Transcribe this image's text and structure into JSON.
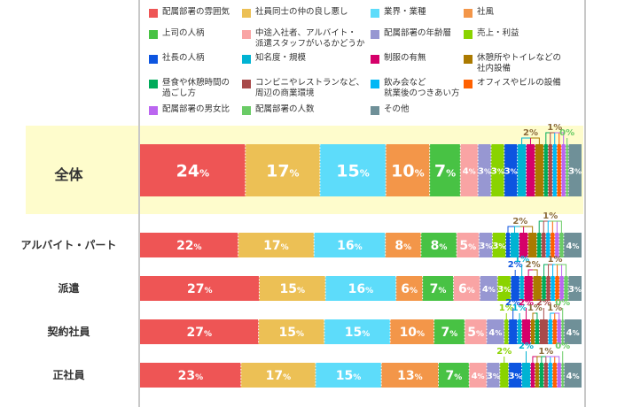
{
  "chart_data": {
    "type": "bar",
    "orientation": "horizontal",
    "stacked": true,
    "unit": "%",
    "legend_placement": "top",
    "series": [
      {
        "name": "配属部署の雰囲気",
        "color": "#ee5555"
      },
      {
        "name": "社員同士の仲の良し悪し",
        "color": "#ecc055"
      },
      {
        "name": "業界・業種",
        "color": "#5ddcfa"
      },
      {
        "name": "社風",
        "color": "#f39649"
      },
      {
        "name": "上司の人柄",
        "color": "#48c244"
      },
      {
        "name": "中途入社者、アルバイト・\n派遣スタッフがいるかどうか",
        "color": "#f9a4a4"
      },
      {
        "name": "配属部署の年齢層",
        "color": "#9797d2"
      },
      {
        "name": "売上・利益",
        "color": "#8ad300"
      },
      {
        "name": "社長の人柄",
        "color": "#0d55e0"
      },
      {
        "name": "知名度・規模",
        "color": "#00b3d3"
      },
      {
        "name": "制服の有無",
        "color": "#d5006a"
      },
      {
        "name": "休憩所やトイレなどの\n社内設備",
        "color": "#ab7a00"
      },
      {
        "name": "昼食や休憩時間の\n過ごし方",
        "color": "#00ab5a"
      },
      {
        "name": "コンビニやレストランなど、\n周辺の商業環境",
        "color": "#a84a4a"
      },
      {
        "name": "飲み会など\n就業後のつきあい方",
        "color": "#00b7f5"
      },
      {
        "name": "オフィスやビルの設備",
        "color": "#ff6000"
      },
      {
        "name": "配属部署の男女比",
        "color": "#bb66f0"
      },
      {
        "name": "配属部署の人数",
        "color": "#6acb66"
      },
      {
        "name": "その他",
        "color": "#6f9098"
      }
    ],
    "categories": [
      "全体",
      "アルバイト・パート",
      "派遣",
      "契約社員",
      "正社員"
    ],
    "rows": [
      {
        "category": "全体",
        "values": [
          24,
          17,
          15,
          10,
          7,
          4,
          3,
          3,
          3,
          2,
          2,
          2,
          1,
          1,
          1,
          1,
          1,
          0,
          3
        ],
        "callouts": [
          {
            "label": "2%",
            "segments": [
              9,
              10,
              11
            ]
          },
          {
            "label": "1%",
            "segments": [
              12,
              13,
              14,
              15,
              16
            ]
          },
          {
            "label": "0%",
            "segments": [
              17
            ]
          }
        ]
      },
      {
        "category": "アルバイト・パート",
        "values": [
          22,
          17,
          16,
          8,
          8,
          5,
          3,
          3,
          1,
          2,
          2,
          2,
          1,
          1,
          1,
          1,
          1,
          1,
          4
        ],
        "callouts": [
          {
            "label": "2%",
            "segments": [
              8,
              9,
              10,
              11
            ]
          },
          {
            "label": "1%",
            "segments": [
              12,
              13,
              14,
              15,
              16,
              17
            ]
          }
        ]
      },
      {
        "category": "派遣",
        "values": [
          27,
          15,
          16,
          6,
          7,
          6,
          4,
          3,
          2,
          1,
          2,
          2,
          1,
          1,
          1,
          1,
          1,
          1,
          3
        ],
        "callouts": [
          {
            "label": "2%",
            "segments": [
              8
            ]
          },
          {
            "label": "1%",
            "segments": [
              9
            ]
          },
          {
            "label": "2%",
            "segments": [
              10,
              11
            ]
          },
          {
            "label": "1%",
            "segments": [
              12,
              13,
              14,
              15,
              16,
              17
            ]
          }
        ]
      },
      {
        "category": "契約社員",
        "values": [
          27,
          15,
          15,
          10,
          7,
          5,
          4,
          1,
          2,
          1,
          2,
          1,
          1,
          2,
          1,
          1,
          1,
          0,
          4
        ],
        "callouts": [
          {
            "label": "1%",
            "segments": [
              7
            ]
          },
          {
            "label": "2%",
            "segments": [
              8
            ]
          },
          {
            "label": "1%",
            "segments": [
              9
            ]
          },
          {
            "label": "2%",
            "segments": [
              10
            ]
          },
          {
            "label": "1%",
            "segments": [
              11,
              12
            ]
          },
          {
            "label": "2%",
            "segments": [
              13
            ]
          },
          {
            "label": "1%",
            "segments": [
              14,
              15,
              16
            ]
          },
          {
            "label": "0%",
            "segments": [
              17
            ]
          }
        ]
      },
      {
        "category": "正社員",
        "values": [
          23,
          17,
          15,
          13,
          7,
          4,
          3,
          2,
          3,
          2,
          1,
          1,
          1,
          1,
          1,
          1,
          1,
          0,
          4
        ],
        "callouts": [
          {
            "label": "2%",
            "segments": [
              7
            ]
          },
          {
            "label": "2%",
            "segments": [
              9
            ]
          },
          {
            "label": "1%",
            "segments": [
              10,
              11,
              12,
              13,
              14,
              15,
              16
            ]
          },
          {
            "label": "0%",
            "segments": [
              17
            ]
          }
        ]
      }
    ]
  }
}
